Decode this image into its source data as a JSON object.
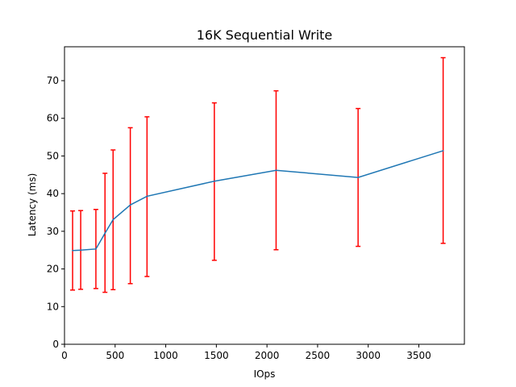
{
  "chart_data": {
    "type": "line",
    "title": "16K  Sequential Write",
    "xlabel": "IOps",
    "ylabel": "Latency (ms)",
    "xlim": [
      0,
      3950
    ],
    "ylim": [
      0,
      79
    ],
    "xticks": [
      0,
      500,
      1000,
      1500,
      2000,
      2500,
      3000,
      3500
    ],
    "yticks": [
      0,
      10,
      20,
      30,
      40,
      50,
      60,
      70
    ],
    "grid": false,
    "series": [
      {
        "color": "#1f77b4",
        "x": [
          80,
          160,
          310,
          400,
          480,
          650,
          815,
          1480,
          2090,
          2900,
          3740
        ],
        "y": [
          24.9,
          25.0,
          25.3,
          29.5,
          33.1,
          37.0,
          39.3,
          43.3,
          46.2,
          44.3,
          51.4
        ],
        "yerr_low": [
          14.4,
          14.6,
          14.8,
          13.8,
          14.5,
          16.1,
          18.0,
          22.3,
          25.1,
          26.0,
          26.8
        ],
        "yerr_high": [
          35.4,
          35.5,
          35.8,
          45.4,
          51.6,
          57.5,
          60.4,
          64.1,
          67.3,
          62.6,
          76.1
        ],
        "error_color": "#ff0000"
      }
    ]
  }
}
